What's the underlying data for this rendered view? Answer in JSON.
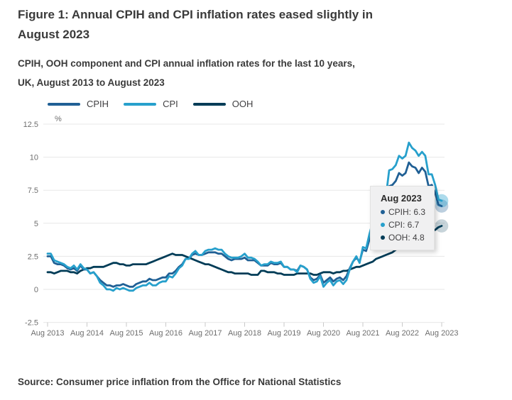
{
  "header": {
    "title_lines": [
      "Figure 1: Annual CPIH and CPI inflation rates eased slightly in",
      "August 2023"
    ],
    "subtitle_lines": [
      "CPIH, OOH component and CPI annual inflation rates for the last 10 years,",
      "UK, August 2013 to August 2023"
    ]
  },
  "legend": {
    "items": [
      {
        "label": "CPIH",
        "color": "#206095"
      },
      {
        "label": "CPI",
        "color": "#27a0cc"
      },
      {
        "label": "OOH",
        "color": "#003c57"
      }
    ]
  },
  "chart_data": {
    "type": "line",
    "title": "Figure 1: Annual CPIH and CPI inflation rates eased slightly in August 2023",
    "unit_label": "%",
    "frequency": "monthly",
    "x_start": "Aug 2013",
    "x_end": "Aug 2023",
    "x_tick_labels": [
      "Aug 2013",
      "Aug 2014",
      "Aug 2015",
      "Aug 2016",
      "Aug 2017",
      "Aug 2018",
      "Aug 2019",
      "Aug 2020",
      "Aug 2021",
      "Aug 2022",
      "Aug 2023"
    ],
    "y_ticks": [
      {
        "label": "12.5",
        "value": 12.5
      },
      {
        "label": "10",
        "value": 10
      },
      {
        "label": "7.5",
        "value": 7.5
      },
      {
        "label": "5",
        "value": 5
      },
      {
        "label": "2.5",
        "value": 2.5
      },
      {
        "label": "0",
        "value": 0
      },
      {
        "label": "-2.5",
        "value": -2.5
      }
    ],
    "ylim": [
      -2.5,
      12.5
    ],
    "grid": true,
    "legend_position": "top",
    "series": [
      {
        "name": "OOH",
        "color": "#003c57",
        "marker_fill": "rgba(0,60,87,0.22)",
        "values": [
          1.3,
          1.3,
          1.2,
          1.3,
          1.4,
          1.4,
          1.4,
          1.3,
          1.3,
          1.2,
          1.4,
          1.5,
          1.6,
          1.6,
          1.7,
          1.7,
          1.7,
          1.7,
          1.8,
          1.9,
          2.0,
          2.0,
          1.9,
          1.9,
          1.8,
          1.8,
          1.9,
          1.9,
          1.9,
          1.9,
          1.9,
          2.0,
          2.1,
          2.2,
          2.3,
          2.4,
          2.5,
          2.6,
          2.7,
          2.6,
          2.6,
          2.6,
          2.5,
          2.4,
          2.3,
          2.2,
          2.1,
          2.0,
          1.9,
          1.9,
          1.8,
          1.7,
          1.6,
          1.5,
          1.4,
          1.3,
          1.3,
          1.2,
          1.2,
          1.2,
          1.2,
          1.2,
          1.1,
          1.1,
          1.1,
          1.4,
          1.4,
          1.3,
          1.3,
          1.3,
          1.2,
          1.2,
          1.1,
          1.1,
          1.1,
          1.1,
          1.2,
          1.2,
          1.2,
          1.2,
          1.2,
          1.1,
          1.1,
          1.2,
          1.3,
          1.3,
          1.3,
          1.2,
          1.3,
          1.3,
          1.4,
          1.4,
          1.5,
          1.6,
          1.7,
          1.7,
          1.8,
          1.9,
          2.0,
          2.1,
          2.3,
          2.4,
          2.5,
          2.6,
          2.7,
          2.8,
          3.0,
          3.1,
          3.2,
          3.3,
          3.5,
          3.6,
          3.7,
          3.9,
          4.0,
          4.1,
          4.2,
          4.4,
          4.5,
          4.7,
          4.8
        ]
      },
      {
        "name": "CPIH",
        "color": "#206095",
        "marker_fill": "rgba(32,96,149,0.30)",
        "values": [
          2.5,
          2.5,
          2.0,
          1.9,
          1.9,
          1.8,
          1.6,
          1.5,
          1.6,
          1.4,
          1.8,
          1.5,
          1.5,
          1.2,
          1.3,
          1.0,
          0.7,
          0.5,
          0.3,
          0.3,
          0.2,
          0.3,
          0.3,
          0.4,
          0.3,
          0.2,
          0.2,
          0.4,
          0.5,
          0.6,
          0.6,
          0.8,
          0.7,
          0.7,
          0.8,
          0.9,
          0.9,
          1.2,
          1.2,
          1.4,
          1.7,
          1.9,
          2.3,
          2.3,
          2.6,
          2.7,
          2.6,
          2.6,
          2.7,
          2.8,
          2.8,
          2.8,
          2.7,
          2.7,
          2.5,
          2.3,
          2.2,
          2.3,
          2.3,
          2.3,
          2.4,
          2.2,
          2.2,
          2.2,
          2.0,
          1.8,
          1.8,
          1.8,
          2.0,
          1.9,
          1.9,
          2.0,
          1.7,
          1.7,
          1.5,
          1.5,
          1.4,
          1.8,
          1.7,
          1.5,
          0.9,
          0.7,
          0.8,
          1.1,
          0.5,
          0.7,
          0.9,
          0.6,
          0.8,
          0.9,
          0.7,
          1.0,
          1.6,
          2.1,
          2.4,
          2.1,
          3.0,
          2.9,
          3.8,
          4.6,
          4.8,
          4.9,
          5.5,
          6.2,
          7.8,
          7.9,
          8.2,
          8.8,
          8.6,
          8.8,
          9.6,
          9.3,
          9.2,
          8.8,
          9.2,
          8.9,
          7.8,
          7.9,
          7.3,
          6.4,
          6.3
        ]
      },
      {
        "name": "CPI",
        "color": "#27a0cc",
        "marker_fill": "rgba(39,160,204,0.38)",
        "values": [
          2.7,
          2.7,
          2.2,
          2.1,
          2.0,
          1.9,
          1.7,
          1.6,
          1.8,
          1.5,
          1.9,
          1.6,
          1.5,
          1.2,
          1.3,
          1.0,
          0.5,
          0.3,
          0.0,
          0.0,
          -0.1,
          0.1,
          0.0,
          0.1,
          0.0,
          -0.1,
          -0.1,
          0.1,
          0.2,
          0.3,
          0.3,
          0.5,
          0.3,
          0.3,
          0.5,
          0.6,
          0.6,
          1.0,
          0.9,
          1.2,
          1.6,
          1.8,
          2.3,
          2.3,
          2.7,
          2.9,
          2.6,
          2.6,
          2.9,
          3.0,
          3.0,
          3.1,
          3.0,
          3.0,
          2.7,
          2.5,
          2.4,
          2.4,
          2.4,
          2.5,
          2.7,
          2.4,
          2.4,
          2.3,
          2.1,
          1.8,
          1.9,
          1.9,
          2.1,
          2.0,
          2.0,
          2.1,
          1.7,
          1.7,
          1.5,
          1.5,
          1.3,
          1.8,
          1.7,
          1.5,
          0.8,
          0.5,
          0.6,
          1.0,
          0.2,
          0.5,
          0.7,
          0.3,
          0.6,
          0.7,
          0.4,
          0.7,
          1.5,
          2.1,
          2.5,
          2.0,
          3.2,
          3.1,
          4.2,
          5.1,
          5.4,
          5.5,
          6.2,
          7.0,
          9.0,
          9.1,
          9.4,
          10.1,
          9.9,
          10.1,
          11.1,
          10.7,
          10.5,
          10.1,
          10.4,
          10.1,
          8.7,
          8.7,
          7.9,
          6.8,
          6.7
        ]
      }
    ]
  },
  "tooltip": {
    "title": "Aug 2023",
    "items": [
      {
        "label": "CPIH: 6.3",
        "color": "#206095"
      },
      {
        "label": "CPI: 6.7",
        "color": "#27a0cc"
      },
      {
        "label": "OOH: 4.8",
        "color": "#003c57"
      }
    ]
  },
  "source": {
    "text": "Source: Consumer price inflation from the Office for National Statistics"
  },
  "colors": {
    "grid": "#e7e7e7",
    "axis_tick": "#c9c9c9",
    "axis_text": "#6e6e6e",
    "heading_text": "#3a3a3a",
    "tooltip_bg": "#f0f0f1"
  }
}
